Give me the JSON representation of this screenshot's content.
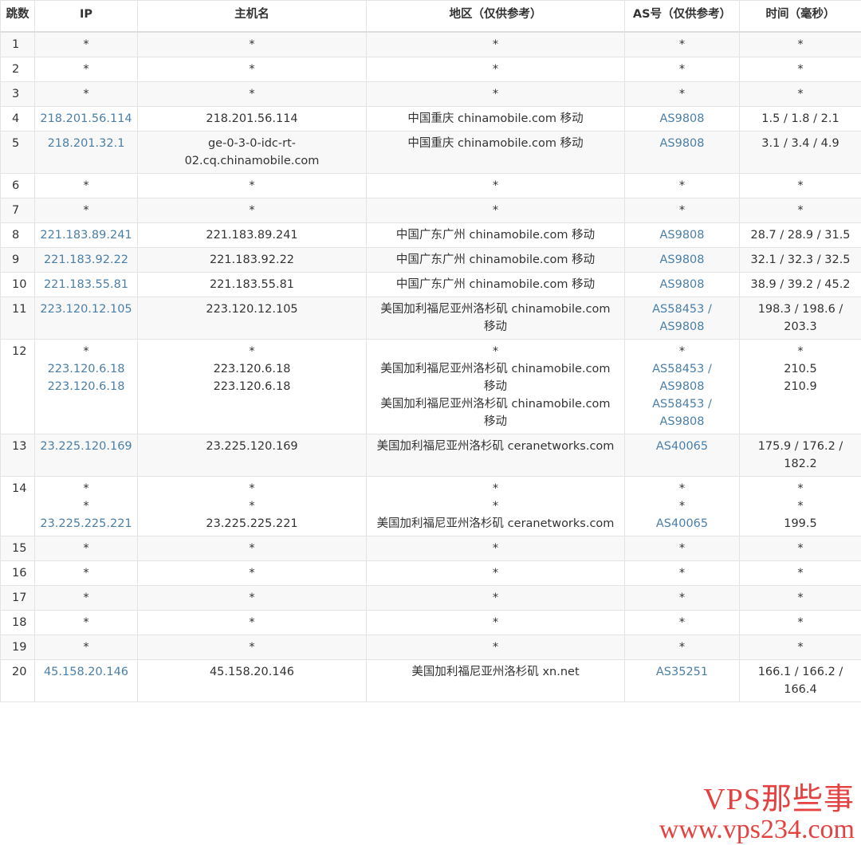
{
  "headers": [
    "跳数",
    "IP",
    "主机名",
    "地区（仅供参考）",
    "AS号（仅供参考）",
    "时间（毫秒）"
  ],
  "rows": [
    [
      "1",
      "*",
      "*",
      "*",
      "*",
      "*"
    ],
    [
      "2",
      "*",
      "*",
      "*",
      "*",
      "*"
    ],
    [
      "3",
      "*",
      "*",
      "*",
      "*",
      "*"
    ],
    [
      "4",
      "218.201.56.114",
      "218.201.56.114",
      "中国重庆 chinamobile.com 移动",
      "AS9808",
      "1.5 / 1.8 / 2.1"
    ],
    [
      "5",
      "218.201.32.1",
      "ge-0-3-0-idc-rt-\n02.cq.chinamobile.com",
      "中国重庆 chinamobile.com 移动",
      "AS9808",
      "3.1 / 3.4 / 4.9"
    ],
    [
      "6",
      "*",
      "*",
      "*",
      "*",
      "*"
    ],
    [
      "7",
      "*",
      "*",
      "*",
      "*",
      "*"
    ],
    [
      "8",
      "221.183.89.241",
      "221.183.89.241",
      "中国广东广州 chinamobile.com 移动",
      "AS9808",
      "28.7 / 28.9 / 31.5"
    ],
    [
      "9",
      "221.183.92.22",
      "221.183.92.22",
      "中国广东广州 chinamobile.com 移动",
      "AS9808",
      "32.1 / 32.3 / 32.5"
    ],
    [
      "10",
      "221.183.55.81",
      "221.183.55.81",
      "中国广东广州 chinamobile.com 移动",
      "AS9808",
      "38.9 / 39.2 / 45.2"
    ],
    [
      "11",
      "223.120.12.105",
      "223.120.12.105",
      "美国加利福尼亚州洛杉矶 chinamobile.com\n移动",
      "AS58453 /\nAS9808",
      "198.3 / 198.6 /\n203.3"
    ],
    [
      "12",
      "*\n223.120.6.18\n223.120.6.18",
      "*\n223.120.6.18\n223.120.6.18",
      "*\n美国加利福尼亚州洛杉矶 chinamobile.com\n移动\n美国加利福尼亚州洛杉矶 chinamobile.com\n移动",
      "*\nAS58453 /\nAS9808\nAS58453 /\nAS9808",
      "*\n210.5\n210.9"
    ],
    [
      "13",
      "23.225.120.169",
      "23.225.120.169",
      "美国加利福尼亚州洛杉矶 ceranetworks.com",
      "AS40065",
      "175.9 / 176.2 /\n182.2"
    ],
    [
      "14",
      "*\n*\n23.225.225.221",
      "*\n*\n23.225.225.221",
      "*\n*\n美国加利福尼亚州洛杉矶 ceranetworks.com",
      "*\n*\nAS40065",
      "*\n*\n199.5"
    ],
    [
      "15",
      "*",
      "*",
      "*",
      "*",
      "*"
    ],
    [
      "16",
      "*",
      "*",
      "*",
      "*",
      "*"
    ],
    [
      "17",
      "*",
      "*",
      "*",
      "*",
      "*"
    ],
    [
      "18",
      "*",
      "*",
      "*",
      "*",
      "*"
    ],
    [
      "19",
      "*",
      "*",
      "*",
      "*",
      "*"
    ],
    [
      "20",
      "45.158.20.146",
      "45.158.20.146",
      "美国加利福尼亚州洛杉矶 xn.net",
      "AS35251",
      "166.1 / 166.2 /\n166.4"
    ]
  ],
  "watermark": {
    "line1": "VPS那些事",
    "line2": "www.vps234.com"
  },
  "colors": {
    "link": "#4a7fa8",
    "watermark": "#e02020"
  }
}
